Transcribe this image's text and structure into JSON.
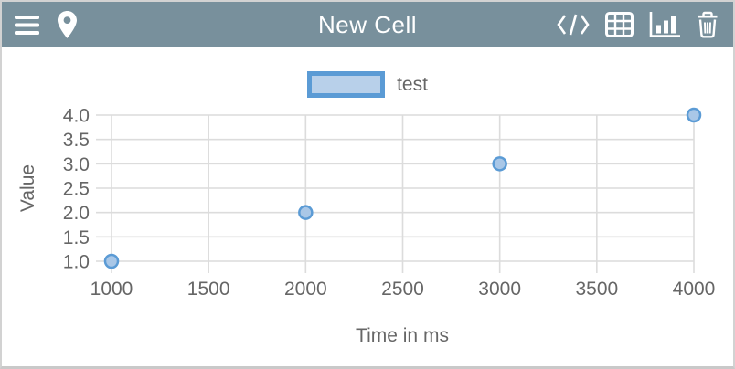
{
  "header": {
    "title": "New Cell",
    "colors": {
      "bg": "#78909c",
      "fg": "#ffffff"
    },
    "left_icons": [
      {
        "name": "menu-icon"
      },
      {
        "name": "location-pin-icon"
      }
    ],
    "right_icons": [
      {
        "name": "code-icon"
      },
      {
        "name": "table-icon"
      },
      {
        "name": "bar-chart-icon",
        "active": true
      },
      {
        "name": "trash-icon"
      }
    ]
  },
  "chart_data": {
    "type": "scatter",
    "title": "",
    "xlabel": "Time in ms",
    "ylabel": "Value",
    "legend": [
      {
        "label": "test"
      }
    ],
    "legend_position": "top",
    "grid": true,
    "xlim": [
      1000,
      4000
    ],
    "ylim": [
      1.0,
      4.0
    ],
    "x_ticks": [
      1000,
      1500,
      2000,
      2500,
      3000,
      3500,
      4000
    ],
    "x_tick_labels": [
      "1000",
      "1500",
      "2000",
      "2500",
      "3000",
      "3500",
      "4000"
    ],
    "y_ticks": [
      1.0,
      1.5,
      2.0,
      2.5,
      3.0,
      3.5,
      4.0
    ],
    "y_tick_labels": [
      "1.0",
      "1.5",
      "2.0",
      "2.5",
      "3.0",
      "3.5",
      "4.0"
    ],
    "series": [
      {
        "name": "test",
        "points": [
          [
            1000,
            1.0
          ],
          [
            2000,
            2.0
          ],
          [
            3000,
            3.0
          ],
          [
            4000,
            4.0
          ]
        ]
      }
    ],
    "colors": {
      "point_fill": "#a9c7e7",
      "point_stroke": "#5b9bd5",
      "grid": "#dcdcdc",
      "text": "#666666",
      "legend_fill": "#b8d0ea",
      "legend_border": "#5b9bd5"
    }
  }
}
